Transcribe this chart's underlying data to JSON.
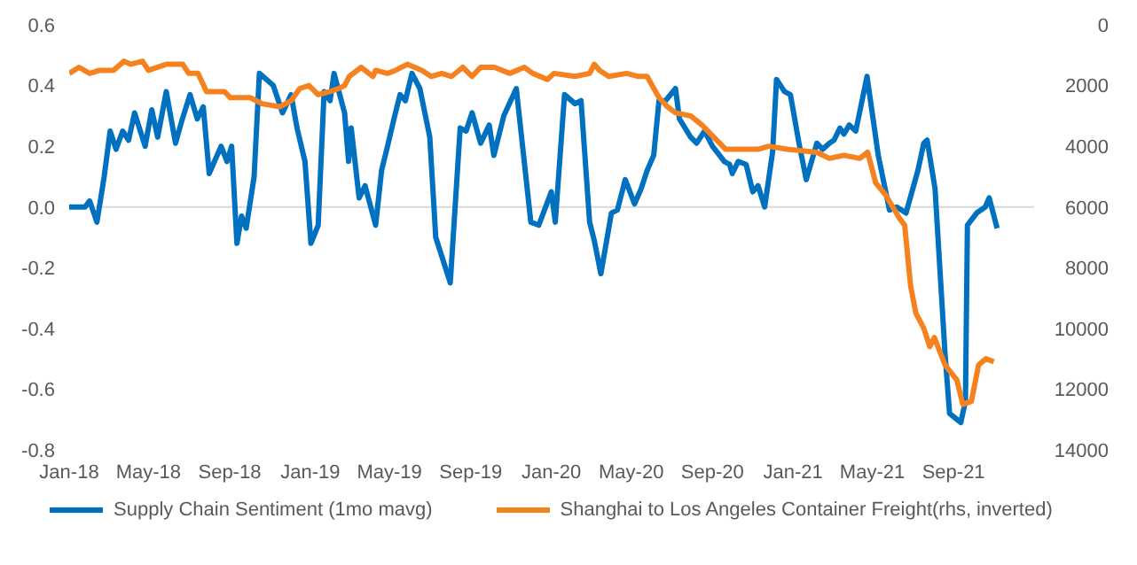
{
  "chart_data": {
    "type": "line",
    "xlim": [
      "2018-01-01",
      "2022-01-01"
    ],
    "xticks": [
      {
        "value": "2018-01-01",
        "label": "Jan-18"
      },
      {
        "value": "2018-05-01",
        "label": "May-18"
      },
      {
        "value": "2018-09-01",
        "label": "Sep-18"
      },
      {
        "value": "2019-01-01",
        "label": "Jan-19"
      },
      {
        "value": "2019-05-01",
        "label": "May-19"
      },
      {
        "value": "2019-09-01",
        "label": "Sep-19"
      },
      {
        "value": "2020-01-01",
        "label": "Jan-20"
      },
      {
        "value": "2020-05-01",
        "label": "May-20"
      },
      {
        "value": "2020-09-01",
        "label": "Sep-20"
      },
      {
        "value": "2021-01-01",
        "label": "Jan-21"
      },
      {
        "value": "2021-05-01",
        "label": "May-21"
      },
      {
        "value": "2021-09-01",
        "label": "Sep-21"
      }
    ],
    "ylim": [
      -0.8,
      0.6
    ],
    "yticks": [
      0.6,
      0.4,
      0.2,
      {
        "value": 0,
        "label": "0.0"
      },
      -0.2,
      -0.4,
      -0.6,
      -0.8
    ],
    "y2lim": [
      14000,
      0
    ],
    "y2ticks": [
      0,
      2000,
      4000,
      6000,
      8000,
      10000,
      12000,
      14000
    ],
    "grid": false,
    "ref_lines": [
      {
        "axis": "y",
        "value": 0,
        "color": "#d9d9d9"
      }
    ],
    "legend": "bottom",
    "marker": "none",
    "series": [
      {
        "name": "Supply Chain Sentiment (1mo mavg)",
        "color": "#0070c0",
        "x": [
          "2018-01-01",
          "2018-01-25",
          "2018-02-01",
          "2018-02-12",
          "2018-02-23",
          "2018-03-04",
          "2018-03-13",
          "2018-03-23",
          "2018-04-01",
          "2018-04-10",
          "2018-04-26",
          "2018-05-06",
          "2018-05-15",
          "2018-05-28",
          "2018-06-11",
          "2018-06-20",
          "2018-07-03",
          "2018-07-14",
          "2018-07-23",
          "2018-08-01",
          "2018-08-19",
          "2018-08-28",
          "2018-09-04",
          "2018-09-12",
          "2018-09-19",
          "2018-09-26",
          "2018-10-08",
          "2018-10-16",
          "2018-11-06",
          "2018-11-20",
          "2018-12-03",
          "2018-12-12",
          "2018-12-24",
          "2019-01-02",
          "2019-01-13",
          "2019-01-22",
          "2019-01-31",
          "2019-02-06",
          "2019-02-22",
          "2019-02-28",
          "2019-03-04",
          "2019-03-16",
          "2019-03-25",
          "2019-04-10",
          "2019-04-19",
          "2019-04-28",
          "2019-05-10",
          "2019-05-17",
          "2019-05-25",
          "2019-06-04",
          "2019-06-16",
          "2019-07-01",
          "2019-07-10",
          "2019-08-01",
          "2019-08-16",
          "2019-08-25",
          "2019-09-03",
          "2019-09-16",
          "2019-09-29",
          "2019-10-06",
          "2019-10-21",
          "2019-11-09",
          "2019-12-01",
          "2019-12-13",
          "2020-01-01",
          "2020-01-07",
          "2020-01-21",
          "2020-02-06",
          "2020-02-15",
          "2020-02-28",
          "2020-03-06",
          "2020-03-16",
          "2020-04-01",
          "2020-04-10",
          "2020-04-22",
          "2020-05-06",
          "2020-05-16",
          "2020-05-25",
          "2020-06-04",
          "2020-06-12",
          "2020-06-22",
          "2020-07-07",
          "2020-07-13",
          "2020-07-30",
          "2020-08-08",
          "2020-08-20",
          "2020-09-01",
          "2020-09-19",
          "2020-09-27",
          "2020-10-01",
          "2020-10-10",
          "2020-10-22",
          "2020-11-01",
          "2020-11-09",
          "2020-11-19",
          "2020-12-01",
          "2020-12-07",
          "2020-12-19",
          "2020-12-28",
          "2021-01-10",
          "2021-01-21",
          "2021-02-06",
          "2021-02-15",
          "2021-02-25",
          "2021-03-04",
          "2021-03-13",
          "2021-03-19",
          "2021-03-27",
          "2021-04-06",
          "2021-04-23",
          "2021-05-10",
          "2021-05-27",
          "2021-06-07",
          "2021-06-21",
          "2021-07-09",
          "2021-07-18",
          "2021-07-23",
          "2021-08-04",
          "2021-08-19",
          "2021-08-26",
          "2021-09-12",
          "2021-09-19",
          "2021-09-22",
          "2021-10-06",
          "2021-10-19",
          "2021-10-25",
          "2021-11-06"
        ],
        "values": [
          0.0,
          0.0,
          0.02,
          -0.05,
          0.1,
          0.25,
          0.19,
          0.25,
          0.22,
          0.31,
          0.2,
          0.32,
          0.23,
          0.38,
          0.21,
          0.28,
          0.37,
          0.29,
          0.33,
          0.11,
          0.2,
          0.15,
          0.2,
          -0.12,
          -0.03,
          -0.07,
          0.1,
          0.44,
          0.4,
          0.31,
          0.37,
          0.26,
          0.15,
          -0.12,
          -0.06,
          0.38,
          0.35,
          0.44,
          0.31,
          0.15,
          0.26,
          0.03,
          0.07,
          -0.06,
          0.12,
          0.2,
          0.31,
          0.37,
          0.35,
          0.44,
          0.39,
          0.23,
          -0.1,
          -0.25,
          0.26,
          0.25,
          0.31,
          0.21,
          0.27,
          0.17,
          0.3,
          0.39,
          -0.05,
          -0.06,
          0.05,
          -0.05,
          0.37,
          0.34,
          0.35,
          -0.05,
          -0.11,
          -0.22,
          -0.02,
          -0.01,
          0.09,
          0.01,
          0.06,
          0.12,
          0.17,
          0.35,
          0.35,
          0.39,
          0.29,
          0.23,
          0.21,
          0.25,
          0.2,
          0.15,
          0.14,
          0.11,
          0.15,
          0.14,
          0.05,
          0.07,
          0.0,
          0.18,
          0.42,
          0.38,
          0.37,
          0.21,
          0.09,
          0.21,
          0.19,
          0.21,
          0.22,
          0.26,
          0.24,
          0.27,
          0.25,
          0.43,
          0.17,
          -0.01,
          0.0,
          -0.02,
          0.12,
          0.21,
          0.22,
          0.06,
          -0.48,
          -0.68,
          -0.71,
          -0.64,
          -0.06,
          -0.02,
          0.0,
          0.03,
          -0.07
        ]
      },
      {
        "name": "Shanghai to Los Angeles Container Freight(rhs, inverted)",
        "color": "#f5821f",
        "axis": "y2",
        "x": [
          "2018-01-01",
          "2018-01-16",
          "2018-02-01",
          "2018-02-16",
          "2018-03-09",
          "2018-03-25",
          "2018-04-04",
          "2018-04-22",
          "2018-05-01",
          "2018-05-28",
          "2018-06-22",
          "2018-07-01",
          "2018-07-15",
          "2018-07-28",
          "2018-08-15",
          "2018-08-24",
          "2018-09-02",
          "2018-10-02",
          "2018-10-20",
          "2018-11-16",
          "2018-12-03",
          "2018-12-16",
          "2018-12-30",
          "2019-01-13",
          "2019-01-31",
          "2019-02-13",
          "2019-02-22",
          "2019-03-01",
          "2019-03-19",
          "2019-04-06",
          "2019-04-10",
          "2019-04-28",
          "2019-05-10",
          "2019-05-28",
          "2019-06-19",
          "2019-07-03",
          "2019-07-19",
          "2019-08-03",
          "2019-08-20",
          "2019-09-03",
          "2019-09-16",
          "2019-10-07",
          "2019-10-30",
          "2019-11-21",
          "2019-12-04",
          "2019-12-26",
          "2020-01-05",
          "2020-02-06",
          "2020-02-28",
          "2020-03-06",
          "2020-03-14",
          "2020-03-28",
          "2020-04-24",
          "2020-05-12",
          "2020-05-25",
          "2020-06-12",
          "2020-06-25",
          "2020-07-07",
          "2020-07-30",
          "2020-08-16",
          "2020-09-03",
          "2020-09-21",
          "2020-10-22",
          "2020-11-09",
          "2020-11-25",
          "2020-12-23",
          "2021-02-06",
          "2021-02-25",
          "2021-03-19",
          "2021-04-12",
          "2021-04-24",
          "2021-05-06",
          "2021-05-21",
          "2021-06-12",
          "2021-06-19",
          "2021-06-28",
          "2021-07-06",
          "2021-07-18",
          "2021-07-27",
          "2021-08-03",
          "2021-08-19",
          "2021-09-06",
          "2021-09-15",
          "2021-09-28",
          "2021-10-09",
          "2021-10-20",
          "2021-11-01"
        ],
        "values": [
          1600,
          1400,
          1600,
          1500,
          1500,
          1200,
          1300,
          1200,
          1500,
          1300,
          1300,
          1600,
          1600,
          2200,
          2200,
          2200,
          2400,
          2400,
          2600,
          2700,
          2500,
          2100,
          2000,
          2300,
          2200,
          2100,
          2000,
          1700,
          1400,
          1700,
          1500,
          1600,
          1500,
          1300,
          1500,
          1700,
          1600,
          1700,
          1400,
          1700,
          1400,
          1400,
          1600,
          1400,
          1600,
          1800,
          1600,
          1700,
          1600,
          1300,
          1500,
          1700,
          1600,
          1700,
          1700,
          2400,
          2700,
          2900,
          3000,
          3300,
          3700,
          4100,
          4100,
          4100,
          4000,
          4100,
          4200,
          4400,
          4300,
          4400,
          4200,
          5200,
          5600,
          6400,
          6600,
          8600,
          9500,
          10000,
          10600,
          10300,
          11200,
          11700,
          12500,
          12400,
          11200,
          11000,
          11100
        ]
      }
    ]
  }
}
